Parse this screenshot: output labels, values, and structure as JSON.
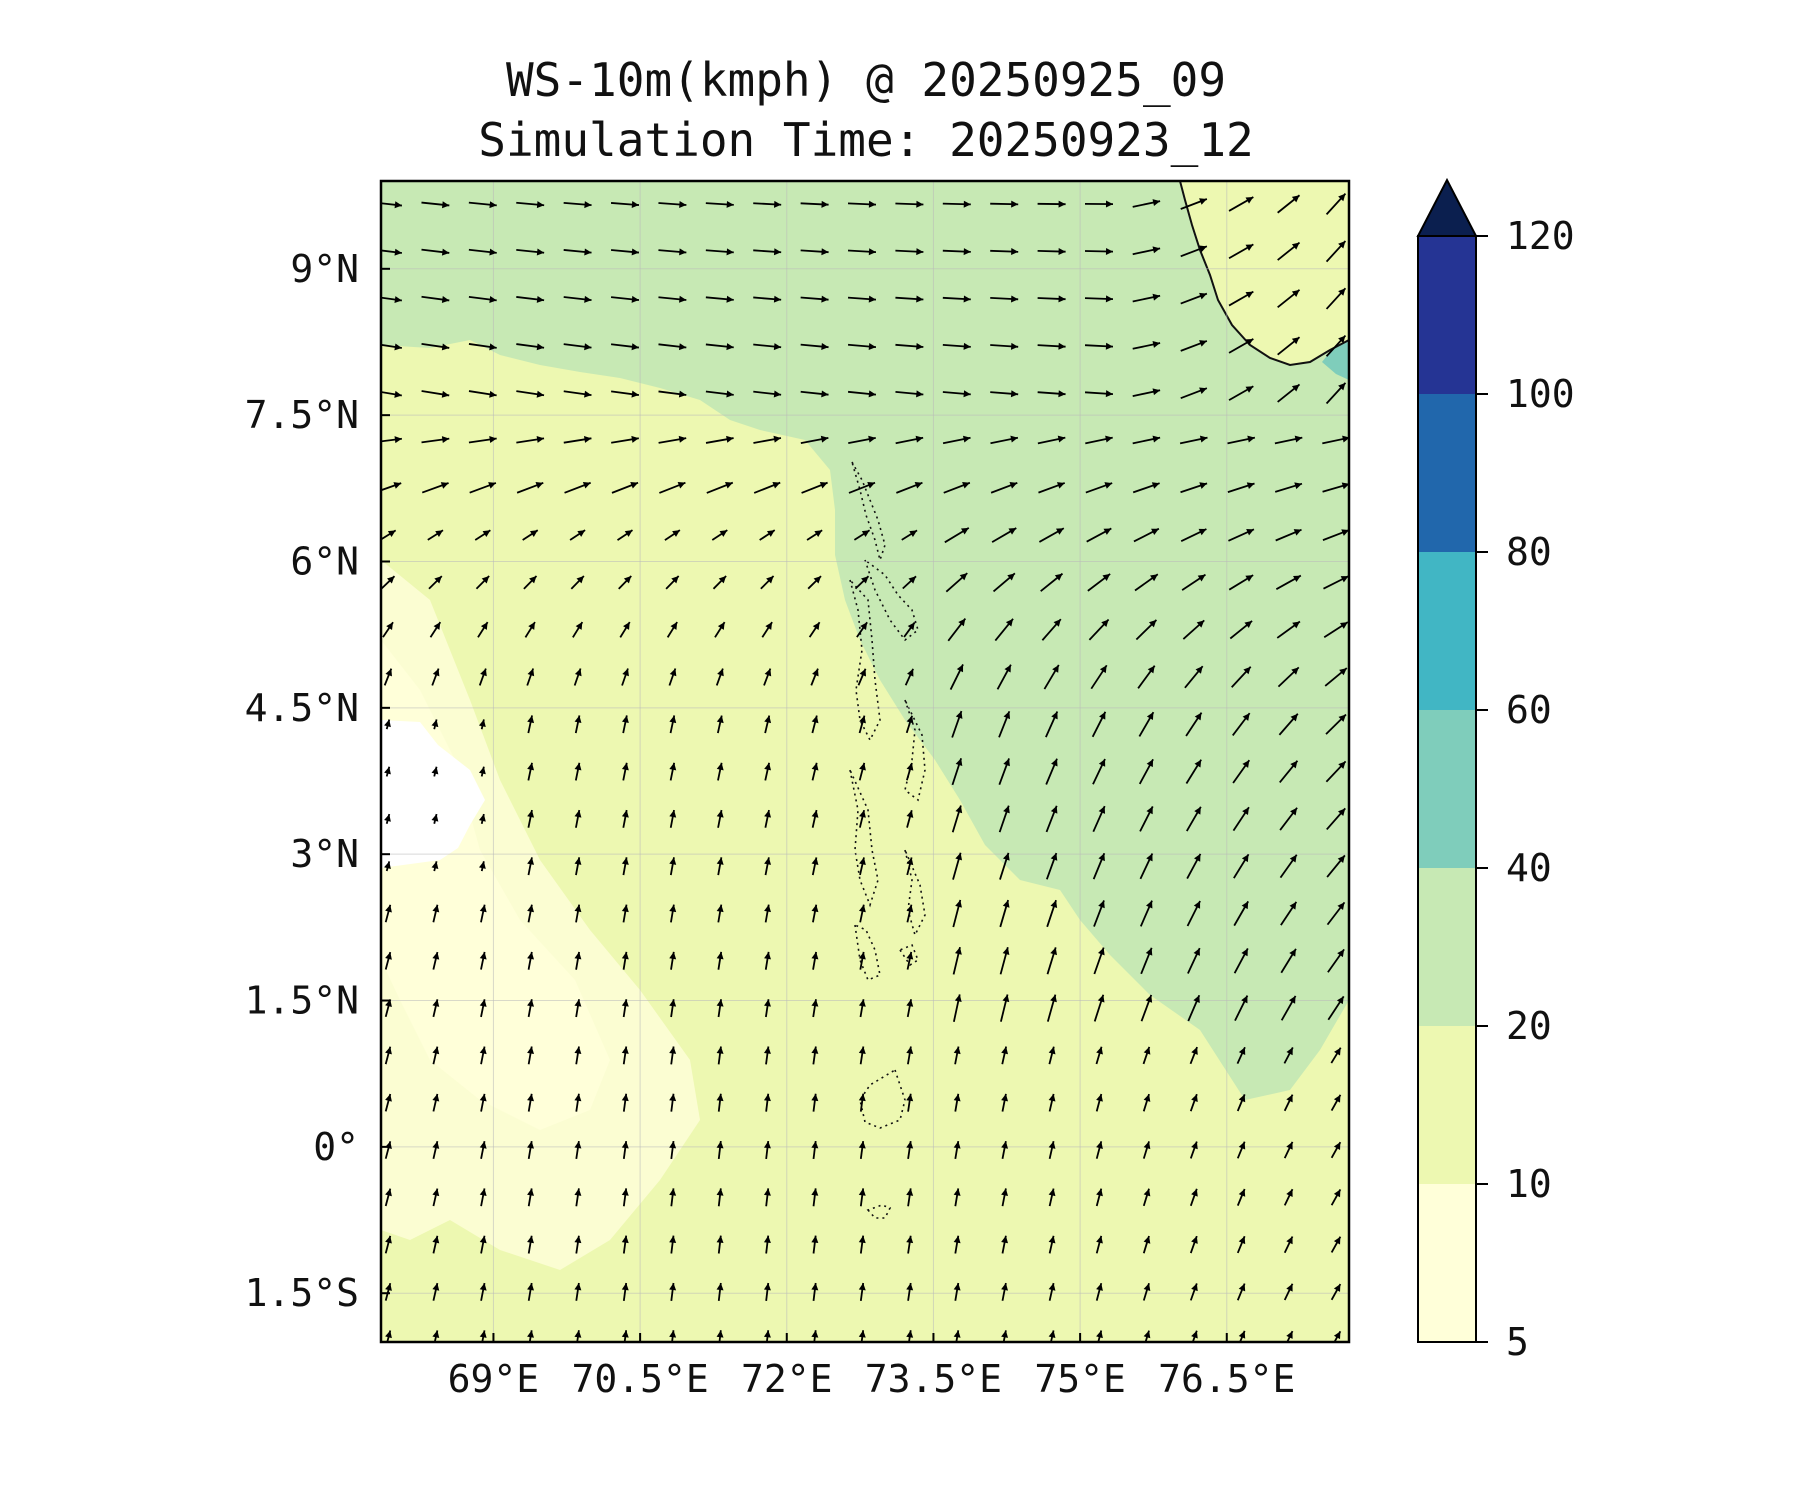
{
  "chart_data": {
    "type": "map",
    "title": "WS-10m(kmph) @ 20250925_09",
    "subtitle": "Simulation Time: 20250923_12",
    "variable": "WS-10m",
    "units": "kmph",
    "valid_time": "20250925_09",
    "simulation_time": "20250923_12",
    "lon_range": [
      67.85,
      77.75
    ],
    "lat_range": [
      -2.0,
      9.9
    ],
    "x_ticks": [
      {
        "value": 69,
        "label": "69°E"
      },
      {
        "value": 70.5,
        "label": "70.5°E"
      },
      {
        "value": 72,
        "label": "72°E"
      },
      {
        "value": 73.5,
        "label": "73.5°E"
      },
      {
        "value": 75,
        "label": "75°E"
      },
      {
        "value": 76.5,
        "label": "76.5°E"
      }
    ],
    "y_ticks": [
      {
        "value": 9,
        "label": "9°N"
      },
      {
        "value": 7.5,
        "label": "7.5°N"
      },
      {
        "value": 6,
        "label": "6°N"
      },
      {
        "value": 4.5,
        "label": "4.5°N"
      },
      {
        "value": 3,
        "label": "3°N"
      },
      {
        "value": 1.5,
        "label": "1.5°N"
      },
      {
        "value": 0,
        "label": "0°"
      },
      {
        "value": -1.5,
        "label": "1.5°S"
      }
    ],
    "gridlines": true,
    "colorbar": {
      "position": "right",
      "extend": "max",
      "levels": [
        5,
        10,
        20,
        40,
        60,
        80,
        100,
        120
      ],
      "labels": [
        "5",
        "10",
        "20",
        "40",
        "60",
        "80",
        "100",
        "120"
      ],
      "colors": [
        "#ffffd9",
        "#edf8b1",
        "#c7e9b4",
        "#7fcdbb",
        "#41b6c4",
        "#2167ac",
        "#253494",
        "#081d58"
      ],
      "extend_color": "#0b1f4f"
    },
    "wind_regimes": [
      {
        "region": "north (lat > 7.5°N)",
        "direction": "westerly to west-northwesterly",
        "speed_class": "20-40"
      },
      {
        "region": "east (lon > 74°E, lat 1–7°N)",
        "direction": "southwesterly",
        "speed_class": "20-40"
      },
      {
        "region": "south and west",
        "direction": "southerly to south-southeasterly",
        "speed_class": "5-20"
      }
    ]
  },
  "colors": {
    "c5_10": "#ffffd9",
    "c10_20": "#edf8b1",
    "c20_40": "#c7e9b4",
    "c40_60": "#7fcdbb",
    "coast": "#111111"
  },
  "icons": {
    "colorbar_extend": "triangle-extend-icon"
  }
}
